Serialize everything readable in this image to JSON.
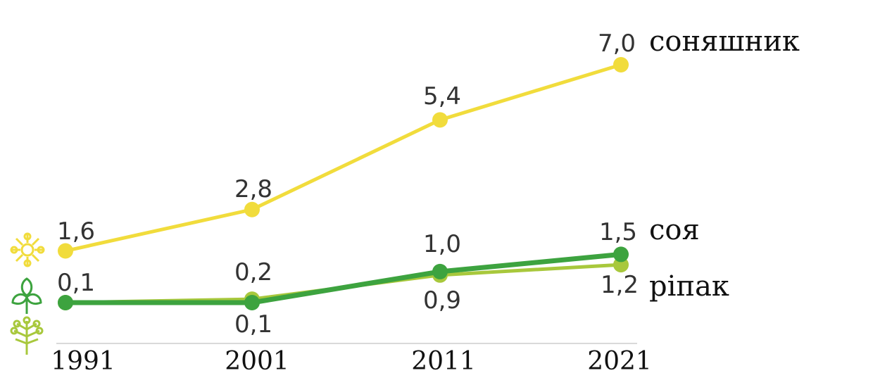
{
  "chart_data": {
    "type": "line",
    "x": [
      "1991",
      "2001",
      "2011",
      "2021"
    ],
    "series": [
      {
        "name": "соняшник",
        "values": [
          1.6,
          2.8,
          5.4,
          7.0
        ],
        "labels": [
          "1,6",
          "2,8",
          "5,4",
          "7,0"
        ],
        "color": "#F1DC3C",
        "icon": "sunflower-icon"
      },
      {
        "name": "соя",
        "values": [
          0.1,
          0.1,
          1.0,
          1.5
        ],
        "labels": [
          "0,1",
          "0,1",
          "1,0",
          "1,5"
        ],
        "color": "#3DA33F",
        "icon": "soybean-leaf-icon"
      },
      {
        "name": "ріпак",
        "values": [
          0.1,
          0.2,
          0.9,
          1.2
        ],
        "labels": [
          "0,1",
          "0,2",
          "0,9",
          "1,2"
        ],
        "color": "#A8C83C",
        "icon": "rapeseed-icon"
      }
    ],
    "ylim": [
      0,
      7.0
    ],
    "grid": false,
    "legend": "none"
  }
}
